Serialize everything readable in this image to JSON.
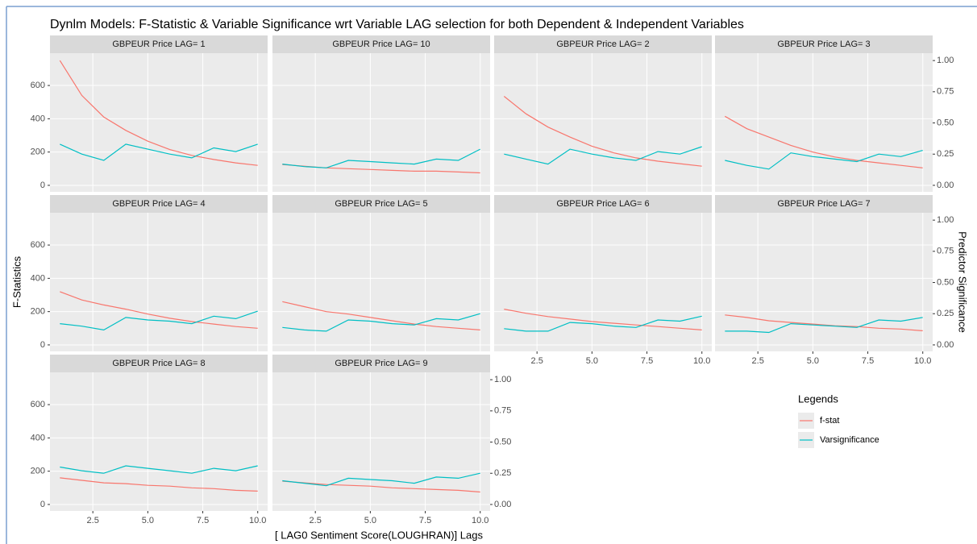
{
  "chart_data": {
    "type": "line",
    "title": "Dynlm Models: F-Statistic & Variable Significance wrt Variable LAG selection for both Dependent & Independent Variables",
    "x_label": "[ LAG0 Sentiment Score(LOUGHRAN)] Lags",
    "y_label": "F-Statistics",
    "y2_label": "Predictor Significance",
    "legend_title": "Legends",
    "grid": true,
    "x": [
      1,
      2,
      3,
      4,
      5,
      6,
      7,
      8,
      9,
      10
    ],
    "xlim": [
      0.55,
      10.45
    ],
    "xticks": [
      2.5,
      {
        "value": 5,
        "label": "5.0"
      },
      7.5,
      {
        "value": 10,
        "label": "10.0"
      }
    ],
    "ylim": [
      -39,
      794
    ],
    "yticks": [
      0,
      200,
      400,
      600
    ],
    "y2lim": [
      -0.052,
      1.059
    ],
    "y2ticks": [
      {
        "value": 0,
        "label": "0.00"
      },
      {
        "value": 0.25,
        "label": "0.25"
      },
      {
        "value": 0.5,
        "label": "0.50"
      },
      {
        "value": 0.75,
        "label": "0.75"
      },
      {
        "value": 1,
        "label": "1.00"
      }
    ],
    "series": [
      {
        "name": "f-stat",
        "color": "#F8766D",
        "axis": "y"
      },
      {
        "name": "Varsignificance",
        "color": "#00BFC4",
        "axis": "y2"
      }
    ],
    "facets": [
      {
        "title": "GBPEUR Price LAG= 1",
        "values": [
          [
            750,
            540,
            410,
            330,
            265,
            215,
            180,
            155,
            135,
            120
          ],
          [
            0.33,
            0.25,
            0.2,
            0.33,
            0.29,
            0.25,
            0.22,
            0.3,
            0.27,
            0.33
          ]
        ]
      },
      {
        "title": "GBPEUR Price LAG= 10",
        "values": [
          [
            125,
            115,
            105,
            100,
            95,
            90,
            85,
            85,
            80,
            75
          ],
          [
            0.17,
            0.15,
            0.14,
            0.2,
            0.19,
            0.18,
            0.17,
            0.21,
            0.2,
            0.29
          ]
        ]
      },
      {
        "title": "GBPEUR Price LAG= 2",
        "values": [
          [
            535,
            430,
            350,
            290,
            235,
            195,
            165,
            145,
            130,
            115
          ],
          [
            0.25,
            0.21,
            0.17,
            0.29,
            0.25,
            0.22,
            0.2,
            0.27,
            0.25,
            0.31
          ]
        ]
      },
      {
        "title": "GBPEUR Price LAG= 3",
        "values": [
          [
            415,
            340,
            290,
            240,
            200,
            170,
            150,
            135,
            120,
            105
          ],
          [
            0.2,
            0.16,
            0.13,
            0.26,
            0.23,
            0.21,
            0.19,
            0.25,
            0.23,
            0.28
          ]
        ]
      },
      {
        "title": "GBPEUR Price LAG= 4",
        "values": [
          [
            320,
            270,
            240,
            215,
            185,
            160,
            140,
            125,
            110,
            100
          ],
          [
            0.17,
            0.15,
            0.12,
            0.22,
            0.2,
            0.19,
            0.17,
            0.23,
            0.21,
            0.27
          ]
        ]
      },
      {
        "title": "GBPEUR Price LAG= 5",
        "values": [
          [
            260,
            230,
            200,
            185,
            165,
            145,
            125,
            110,
            100,
            90
          ],
          [
            0.14,
            0.12,
            0.11,
            0.2,
            0.19,
            0.17,
            0.16,
            0.21,
            0.2,
            0.25
          ]
        ]
      },
      {
        "title": "GBPEUR Price LAG= 6",
        "values": [
          [
            215,
            190,
            170,
            155,
            140,
            130,
            120,
            110,
            100,
            90
          ],
          [
            0.13,
            0.11,
            0.11,
            0.18,
            0.17,
            0.15,
            0.14,
            0.2,
            0.19,
            0.23
          ]
        ]
      },
      {
        "title": "GBPEUR Price LAG= 7",
        "values": [
          [
            180,
            165,
            145,
            135,
            125,
            115,
            110,
            100,
            95,
            85
          ],
          [
            0.11,
            0.11,
            0.1,
            0.17,
            0.16,
            0.15,
            0.14,
            0.2,
            0.19,
            0.22
          ]
        ]
      },
      {
        "title": "GBPEUR Price LAG= 8",
        "values": [
          [
            160,
            145,
            130,
            125,
            115,
            110,
            100,
            95,
            85,
            80
          ],
          [
            0.3,
            0.27,
            0.25,
            0.31,
            0.29,
            0.27,
            0.25,
            0.29,
            0.27,
            0.31
          ]
        ]
      },
      {
        "title": "GBPEUR Price LAG= 9",
        "values": [
          [
            140,
            130,
            120,
            115,
            110,
            100,
            95,
            90,
            85,
            75
          ],
          [
            0.19,
            0.17,
            0.15,
            0.21,
            0.2,
            0.19,
            0.17,
            0.22,
            0.21,
            0.25
          ]
        ]
      }
    ]
  }
}
